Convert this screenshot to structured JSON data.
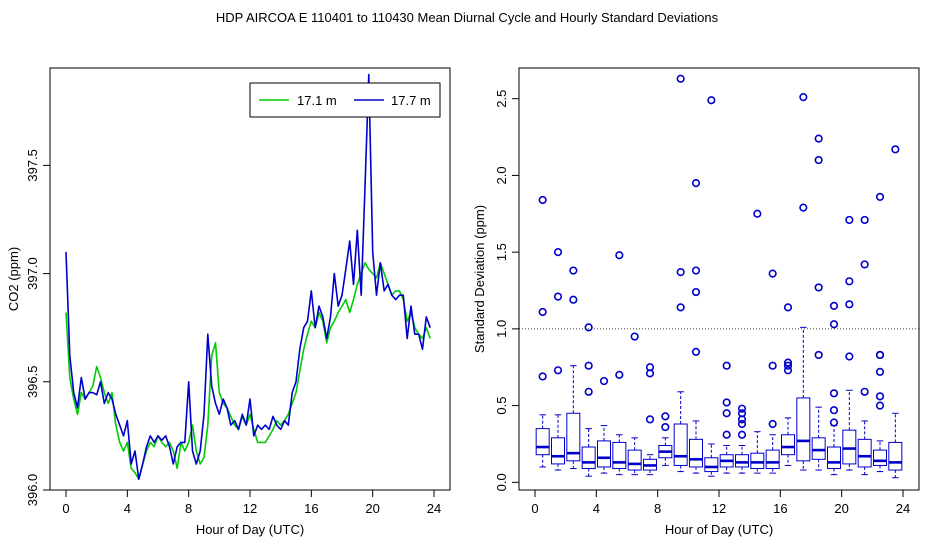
{
  "figure": {
    "title": "HDP   AIRCOA E   110401 to 110430   Mean Diurnal Cycle and Hourly Standard Deviations"
  },
  "colors": {
    "green": "#00cc00",
    "blue": "#0000cc",
    "axis": "#000000"
  },
  "chart_data": [
    {
      "type": "line",
      "xlabel": "Hour of Day (UTC)",
      "ylabel": "CO2 (ppm)",
      "xlim": [
        0,
        24
      ],
      "ylim": [
        396.0,
        397.95
      ],
      "xticks": [
        0,
        4,
        8,
        12,
        16,
        20,
        24
      ],
      "yticks": [
        396.0,
        396.5,
        397.0,
        397.5
      ],
      "ytick_labels": [
        "396.0",
        "396.5",
        "397.0",
        "397.5"
      ],
      "legend": {
        "position": "top-right"
      },
      "x": [
        0,
        0.25,
        0.5,
        0.75,
        1,
        1.25,
        1.5,
        1.75,
        2,
        2.25,
        2.5,
        2.75,
        3,
        3.25,
        3.5,
        3.75,
        4,
        4.25,
        4.5,
        4.75,
        5,
        5.25,
        5.5,
        5.75,
        6,
        6.25,
        6.5,
        6.75,
        7,
        7.25,
        7.5,
        7.75,
        8,
        8.25,
        8.5,
        8.75,
        9,
        9.25,
        9.5,
        9.75,
        10,
        10.25,
        10.5,
        10.75,
        11,
        11.25,
        11.5,
        11.75,
        12,
        12.25,
        12.5,
        12.75,
        13,
        13.25,
        13.5,
        13.75,
        14,
        14.25,
        14.5,
        14.75,
        15,
        15.25,
        15.5,
        15.75,
        16,
        16.25,
        16.5,
        16.75,
        17,
        17.25,
        17.5,
        17.75,
        18,
        18.25,
        18.5,
        18.75,
        19,
        19.25,
        19.5,
        19.75,
        20,
        20.25,
        20.5,
        20.75,
        21,
        21.25,
        21.5,
        21.75,
        22,
        22.25,
        22.5,
        22.75,
        23,
        23.25,
        23.5,
        23.75
      ],
      "series": [
        {
          "name": "17.1 m",
          "color": "#00cc00",
          "values": [
            396.82,
            396.52,
            396.42,
            396.35,
            396.45,
            396.42,
            396.45,
            396.48,
            396.57,
            396.52,
            396.45,
            396.4,
            396.45,
            396.3,
            396.22,
            396.18,
            396.22,
            396.1,
            396.08,
            396.05,
            396.12,
            396.18,
            396.22,
            396.2,
            396.25,
            396.22,
            396.2,
            396.22,
            396.18,
            396.1,
            396.22,
            396.18,
            396.22,
            396.3,
            396.18,
            396.12,
            396.15,
            396.3,
            396.62,
            396.68,
            396.45,
            396.4,
            396.38,
            396.34,
            396.3,
            396.28,
            396.34,
            396.3,
            396.35,
            396.28,
            396.22,
            396.22,
            396.22,
            396.25,
            396.28,
            396.32,
            396.3,
            396.32,
            396.35,
            396.4,
            396.45,
            396.55,
            396.65,
            396.72,
            396.78,
            396.75,
            396.82,
            396.78,
            396.68,
            396.75,
            396.78,
            396.82,
            396.85,
            396.88,
            396.82,
            396.88,
            396.95,
            397.0,
            397.05,
            397.02,
            397.0,
            396.98,
            397.05,
            397.0,
            396.95,
            396.9,
            396.92,
            396.92,
            396.88,
            396.78,
            396.82,
            396.75,
            396.72,
            396.7,
            396.75,
            396.7
          ]
        },
        {
          "name": "17.7 m",
          "color": "#0000cc",
          "values": [
            397.1,
            396.62,
            396.45,
            396.38,
            396.52,
            396.42,
            396.45,
            396.45,
            396.44,
            396.5,
            396.4,
            396.45,
            396.42,
            396.35,
            396.3,
            396.25,
            396.32,
            396.12,
            396.18,
            396.05,
            396.12,
            396.2,
            396.25,
            396.22,
            396.25,
            396.23,
            396.25,
            396.2,
            396.12,
            396.2,
            396.22,
            396.22,
            396.5,
            396.18,
            396.12,
            396.18,
            396.35,
            396.72,
            396.48,
            396.4,
            396.35,
            396.42,
            396.38,
            396.3,
            396.32,
            396.28,
            396.35,
            396.3,
            396.42,
            396.25,
            396.3,
            396.28,
            396.3,
            396.28,
            396.34,
            396.3,
            396.28,
            396.32,
            396.3,
            396.45,
            396.5,
            396.65,
            396.75,
            396.78,
            396.92,
            396.75,
            396.85,
            396.8,
            396.7,
            396.8,
            397.0,
            396.85,
            396.9,
            397.02,
            397.15,
            396.95,
            397.2,
            396.9,
            397.4,
            397.92,
            397.1,
            396.9,
            397.05,
            396.92,
            396.95,
            396.9,
            396.88,
            396.9,
            396.9,
            396.7,
            396.85,
            396.72,
            396.72,
            396.65,
            396.8,
            396.75
          ]
        }
      ]
    },
    {
      "type": "box",
      "xlabel": "Hour of Day (UTC)",
      "ylabel": "Standard Deviation (ppm)",
      "xlim": [
        0,
        24
      ],
      "ylim": [
        -0.05,
        2.7
      ],
      "xticks": [
        0,
        4,
        8,
        12,
        16,
        20,
        24
      ],
      "yticks": [
        0.0,
        0.5,
        1.0,
        1.5,
        2.0,
        2.5
      ],
      "ytick_labels": [
        "0.0",
        "0.5",
        "1.0",
        "1.5",
        "2.0",
        "2.5"
      ],
      "reference_line": 1.0,
      "boxes": [
        {
          "x": 0.5,
          "lower_whisker": 0.1,
          "q1": 0.18,
          "median": 0.23,
          "q3": 0.35,
          "upper_whisker": 0.44,
          "outliers": [
            0.69,
            1.11,
            1.84
          ]
        },
        {
          "x": 1.5,
          "lower_whisker": 0.08,
          "q1": 0.12,
          "median": 0.17,
          "q3": 0.29,
          "upper_whisker": 0.44,
          "outliers": [
            0.73,
            1.21,
            1.5
          ]
        },
        {
          "x": 2.5,
          "lower_whisker": 0.09,
          "q1": 0.14,
          "median": 0.19,
          "q3": 0.45,
          "upper_whisker": 0.76,
          "outliers": [
            1.19,
            1.38
          ]
        },
        {
          "x": 3.5,
          "lower_whisker": 0.04,
          "q1": 0.09,
          "median": 0.13,
          "q3": 0.23,
          "upper_whisker": 0.35,
          "outliers": [
            0.59,
            0.76,
            1.01
          ]
        },
        {
          "x": 4.5,
          "lower_whisker": 0.06,
          "q1": 0.1,
          "median": 0.16,
          "q3": 0.27,
          "upper_whisker": 0.37,
          "outliers": [
            0.66
          ]
        },
        {
          "x": 5.5,
          "lower_whisker": 0.05,
          "q1": 0.09,
          "median": 0.13,
          "q3": 0.26,
          "upper_whisker": 0.31,
          "outliers": [
            0.7,
            1.48
          ]
        },
        {
          "x": 6.5,
          "lower_whisker": 0.05,
          "q1": 0.08,
          "median": 0.12,
          "q3": 0.21,
          "upper_whisker": 0.29,
          "outliers": [
            0.95
          ]
        },
        {
          "x": 7.5,
          "lower_whisker": 0.05,
          "q1": 0.08,
          "median": 0.11,
          "q3": 0.15,
          "upper_whisker": 0.18,
          "outliers": [
            0.41,
            0.71,
            0.75
          ]
        },
        {
          "x": 8.5,
          "lower_whisker": 0.11,
          "q1": 0.16,
          "median": 0.2,
          "q3": 0.24,
          "upper_whisker": 0.29,
          "outliers": [
            0.36,
            0.43
          ]
        },
        {
          "x": 9.5,
          "lower_whisker": 0.07,
          "q1": 0.11,
          "median": 0.17,
          "q3": 0.38,
          "upper_whisker": 0.59,
          "outliers": [
            1.14,
            1.37,
            2.63
          ]
        },
        {
          "x": 10.5,
          "lower_whisker": 0.06,
          "q1": 0.1,
          "median": 0.15,
          "q3": 0.28,
          "upper_whisker": 0.4,
          "outliers": [
            0.85,
            1.24,
            1.38,
            1.95
          ]
        },
        {
          "x": 11.5,
          "lower_whisker": 0.04,
          "q1": 0.07,
          "median": 0.1,
          "q3": 0.16,
          "upper_whisker": 0.25,
          "outliers": [
            2.49
          ]
        },
        {
          "x": 12.5,
          "lower_whisker": 0.06,
          "q1": 0.1,
          "median": 0.14,
          "q3": 0.18,
          "upper_whisker": 0.24,
          "outliers": [
            0.31,
            0.45,
            0.52,
            0.76
          ]
        },
        {
          "x": 13.5,
          "lower_whisker": 0.06,
          "q1": 0.1,
          "median": 0.13,
          "q3": 0.18,
          "upper_whisker": 0.24,
          "outliers": [
            0.31,
            0.38,
            0.41,
            0.45,
            0.48
          ]
        },
        {
          "x": 14.5,
          "lower_whisker": 0.06,
          "q1": 0.09,
          "median": 0.13,
          "q3": 0.19,
          "upper_whisker": 0.33,
          "outliers": [
            1.75
          ]
        },
        {
          "x": 15.5,
          "lower_whisker": 0.06,
          "q1": 0.09,
          "median": 0.13,
          "q3": 0.21,
          "upper_whisker": 0.31,
          "outliers": [
            0.38,
            0.76,
            1.36
          ]
        },
        {
          "x": 16.5,
          "lower_whisker": 0.11,
          "q1": 0.18,
          "median": 0.23,
          "q3": 0.31,
          "upper_whisker": 0.42,
          "outliers": [
            0.73,
            0.76,
            0.78,
            1.14
          ]
        },
        {
          "x": 17.5,
          "lower_whisker": 0.08,
          "q1": 0.14,
          "median": 0.27,
          "q3": 0.55,
          "upper_whisker": 1.01,
          "outliers": [
            1.79,
            2.51
          ]
        },
        {
          "x": 18.5,
          "lower_whisker": 0.08,
          "q1": 0.15,
          "median": 0.21,
          "q3": 0.29,
          "upper_whisker": 0.49,
          "outliers": [
            0.83,
            1.27,
            2.1,
            2.24
          ]
        },
        {
          "x": 19.5,
          "lower_whisker": 0.05,
          "q1": 0.09,
          "median": 0.13,
          "q3": 0.23,
          "upper_whisker": 0.37,
          "outliers": [
            0.39,
            0.47,
            0.58,
            1.03,
            1.15
          ]
        },
        {
          "x": 20.5,
          "lower_whisker": 0.08,
          "q1": 0.12,
          "median": 0.22,
          "q3": 0.34,
          "upper_whisker": 0.6,
          "outliers": [
            0.82,
            1.16,
            1.31,
            1.71
          ]
        },
        {
          "x": 21.5,
          "lower_whisker": 0.05,
          "q1": 0.1,
          "median": 0.17,
          "q3": 0.28,
          "upper_whisker": 0.4,
          "outliers": [
            0.59,
            1.42,
            1.71
          ]
        },
        {
          "x": 22.5,
          "lower_whisker": 0.07,
          "q1": 0.11,
          "median": 0.14,
          "q3": 0.21,
          "upper_whisker": 0.27,
          "outliers": [
            0.5,
            0.56,
            0.72,
            0.83,
            0.83,
            1.86
          ]
        },
        {
          "x": 23.5,
          "lower_whisker": 0.03,
          "q1": 0.08,
          "median": 0.13,
          "q3": 0.26,
          "upper_whisker": 0.45,
          "outliers": [
            2.17
          ]
        }
      ]
    }
  ]
}
